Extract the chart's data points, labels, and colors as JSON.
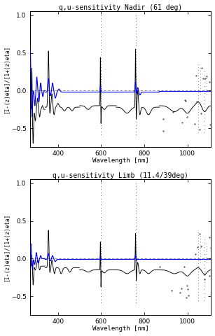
{
  "title_top": "q,u-sensitivity Nadir (61 deg)",
  "title_bottom": "q,u-sensitivity Limb (11.4/39deg)",
  "ylabel": "[1-(z)eta]/[1+(z)eta]",
  "xlabel": "Wavelength [nm]",
  "xlim": [
    270,
    1110
  ],
  "ylim": [
    -0.75,
    1.05
  ],
  "yticks": [
    -0.5,
    0.0,
    0.5,
    1.0
  ],
  "xticks": [
    400,
    600,
    800,
    1000
  ],
  "background_color": "#ffffff",
  "black_color": "#000000",
  "blue_color": "#0000ee",
  "dashed_zero_color": "#888888"
}
